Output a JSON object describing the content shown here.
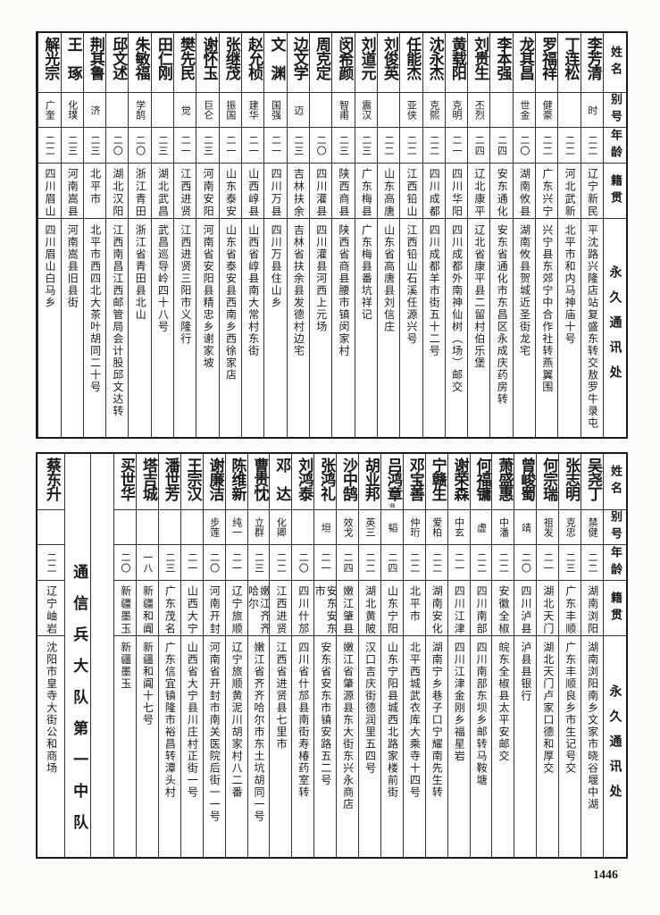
{
  "headers": {
    "name": "姓名",
    "alias": "别号",
    "age": "年龄",
    "origin": "籍贯",
    "address": "永久通讯处"
  },
  "top_table": [
    {
      "name": "李芳清",
      "alias": "时",
      "age": "二二",
      "origin": "辽宁新民",
      "address": "平沈路兴隆店站复盛东转交敖罗牛录屯"
    },
    {
      "name": "丁连松",
      "alias": "",
      "age": "二二",
      "origin": "河北武新",
      "address": "北平市和内马神庙十号"
    },
    {
      "name": "罗福祥",
      "alias": "健豪",
      "age": "二二",
      "origin": "广东兴宁",
      "address": "兴宁县东郊宁中合作社转燕翼围"
    },
    {
      "name": "龙其昌",
      "alias": "世金",
      "age": "二〇",
      "origin": "湖南攸县",
      "address": "湖南攸县贺城近圣街龙宅"
    },
    {
      "name": "李本强",
      "alias": "",
      "age": "二四",
      "origin": "安东通化",
      "address": "安东省通化市东昌区永成庆药房转"
    },
    {
      "name": "刘贵生",
      "alias": "丕烈",
      "age": "二四",
      "origin": "辽北康平",
      "address": "辽北省康平县二留村伯乐堡"
    },
    {
      "name": "黄载阳",
      "alias": "克明",
      "age": "二一",
      "origin": "四川华阳",
      "address": "四川成都外南神仙树（场）邮交"
    },
    {
      "name": "沈永杰",
      "alias": "克熙",
      "age": "二二",
      "origin": "四川成都",
      "address": "四川成都羊市街五十二号"
    },
    {
      "name": "任能杰",
      "alias": "亚侠",
      "age": "二二",
      "origin": "江西铅山",
      "address": "江西铅山石溪任源兴号"
    },
    {
      "name": "刘俊英",
      "alias": "",
      "age": "二二",
      "origin": "山东高唐",
      "address": "山东省高唐县刘信庄"
    },
    {
      "name": "刘道元",
      "alias": "震汉",
      "age": "二三",
      "origin": "广东梅县",
      "address": "广东梅县番坑祥记"
    },
    {
      "name": "闵希颜",
      "alias": "智甫",
      "age": "二三",
      "origin": "陕西商县",
      "address": "陕西省商县腰市镇闵家村"
    },
    {
      "name": "周克定",
      "alias": "",
      "age": "二〇",
      "origin": "四川灌县",
      "address": "四川灌县河西上元场"
    },
    {
      "name": "边文学",
      "alias": "迈",
      "age": "二三",
      "origin": "吉林扶余",
      "address": "吉林省扶余县发德村边宅"
    },
    {
      "name": "文　渊",
      "alias": "国强",
      "age": "二一",
      "origin": "四川万县",
      "address": "四川万县住山乡"
    },
    {
      "name": "赵允桢",
      "alias": "建华",
      "age": "二一",
      "origin": "山西崞县",
      "address": "山西省崞县南大常村东街"
    },
    {
      "name": "张继茂",
      "alias": "振国",
      "age": "二一",
      "origin": "山东泰安",
      "address": "山东省泰安县西南乡西徐家店"
    },
    {
      "name": "谢怀玉",
      "alias": "巨仑",
      "age": "二三",
      "origin": "河南安阳",
      "address": "河南省安阳县精忠乡谢家坡"
    },
    {
      "name": "樊先民",
      "alias": "觉",
      "age": "二一",
      "origin": "江西进贤",
      "address": "江西进贤三阳市义隆行"
    },
    {
      "name": "田仁刚",
      "alias": "",
      "age": "二三",
      "origin": "湖北武昌",
      "address": "武昌巡导岭四十八号"
    },
    {
      "name": "朱敏福",
      "alias": "学鹄",
      "age": "二〇",
      "origin": "浙江青田",
      "address": "浙江省青田县北山"
    },
    {
      "name": "邱文述",
      "alias": "",
      "age": "二〇",
      "origin": "湖北汉阳",
      "address": "江西南昌江西邮管局会计股邱文达转"
    },
    {
      "name": "荆其鲁",
      "alias": "济",
      "age": "二三",
      "origin": "北平市",
      "address": "北平市西四北大茶叶胡同二十号"
    },
    {
      "name": "王　琢",
      "alias": "化璞",
      "age": "二三",
      "origin": "河南嵩县",
      "address": "河南嵩县旧县街"
    },
    {
      "name": "解光宗",
      "alias": "广奎",
      "age": "二二",
      "origin": "四川眉山",
      "address": "四川眉山白马乡"
    }
  ],
  "bottom_table": [
    {
      "name": "吴尧丁",
      "alias": "禁健",
      "age": "二二",
      "origin": "湖南浏阳",
      "address": "湖南浏阳南乡文家市晓谷堰中湖"
    },
    {
      "name": "张志明",
      "alias": "克忠",
      "age": "二三",
      "origin": "广东丰顺",
      "address": "广东丰顺良乡市生记号交"
    },
    {
      "name": "何宗瑞",
      "alias": "祖发",
      "age": "二一",
      "origin": "湖北天门",
      "address": "湖北天门卢家口德和厚交"
    },
    {
      "name": "曾峻蜀",
      "alias": "靖",
      "age": "二〇",
      "origin": "四川泸县",
      "address": "泸县县银行"
    },
    {
      "name": "萧盛惠",
      "alias": "中潘",
      "age": "二二",
      "origin": "安徽全椒",
      "address": "皖东全椒县太平安邮交"
    },
    {
      "name": "何福镛",
      "alias": "虚",
      "age": "二二",
      "origin": "四川南部",
      "address": "四川南部东坝乡邮转马鞍塘"
    },
    {
      "name": "谢荣森",
      "alias": "中玄",
      "age": "二一",
      "origin": "四川江津",
      "address": "四川江津金刚乡福星岩"
    },
    {
      "name": "宁赣生",
      "alias": "爱柏",
      "age": "二二",
      "origin": "湖南安化",
      "address": "湖南宁乡巷子口宁耀南先生转"
    },
    {
      "name": "邓宝善",
      "alias": "仲珩",
      "age": "二二",
      "origin": "北平市",
      "address": "北平西城武衣库大乘寺十四号"
    },
    {
      "name": "吕鸿章",
      "note": "(8)",
      "alias": "韬",
      "age": "二四",
      "origin": "山东宁阳",
      "address": "山东宁阳县城西北路家楼前街"
    },
    {
      "name": "胡业邦",
      "alias": "英三",
      "age": "二二",
      "origin": "湖北黄陂",
      "address": "汉口吉庆街德润里五四号"
    },
    {
      "name": "沙中鹄",
      "alias": "效戈",
      "age": "二四",
      "origin": "嫩江肇县",
      "address": "嫩江省肇源县东大街东兴永商店"
    },
    {
      "name": "张鸿礼",
      "alias": "坦",
      "age": "二一",
      "origin": "安东安东市",
      "address": "安东省安东市镇安路五二号"
    },
    {
      "name": "刘鸿泰",
      "alias": "",
      "age": "二〇",
      "origin": "四川什邡",
      "address": "四川省什邡县南街寿椿药室转"
    },
    {
      "name": "邓　达",
      "alias": "化卿",
      "age": "二二",
      "origin": "江西进贤",
      "address": "江西省进贤县七里市"
    },
    {
      "name": "曹贵忱",
      "alias": "立群",
      "age": "二三",
      "origin": "嫩江齐齐哈尔",
      "address": "嫩江省齐齐哈尔市东土坑胡同一号"
    },
    {
      "name": "陈维新",
      "alias": "纯一",
      "age": "二一",
      "origin": "辽宁旅顺",
      "address": "辽宁旅顺黄泥川胡家村八二番"
    },
    {
      "name": "谢廉洁",
      "alias": "步莲",
      "age": "二〇",
      "origin": "河南开封",
      "address": "河南省开封市南关医院后街一一号"
    },
    {
      "name": "王宗汉",
      "alias": "",
      "age": "二一",
      "origin": "山西大宁",
      "address": "山西省大宁县川庄村正街一号"
    },
    {
      "name": "潘世芳",
      "alias": "",
      "age": "二三",
      "origin": "广东茂名",
      "address": "广东信宜镇隆市裕昌转潭头村"
    },
    {
      "name": "塔吉城",
      "alias": "",
      "age": "一八",
      "origin": "新疆和阗",
      "address": "新疆和阗十七号"
    },
    {
      "name": "买世华",
      "alias": "",
      "age": "二〇",
      "origin": "新疆墨玉",
      "address": "新疆墨玉"
    }
  ],
  "unit_heading": "通信兵大队第一中队",
  "bottom_extra": {
    "name": "蔡东升",
    "alias": "",
    "age": "二二",
    "origin": "辽宁岫岩",
    "address": "沈阳市皇寺大街公和商场"
  },
  "page_number": "1446"
}
